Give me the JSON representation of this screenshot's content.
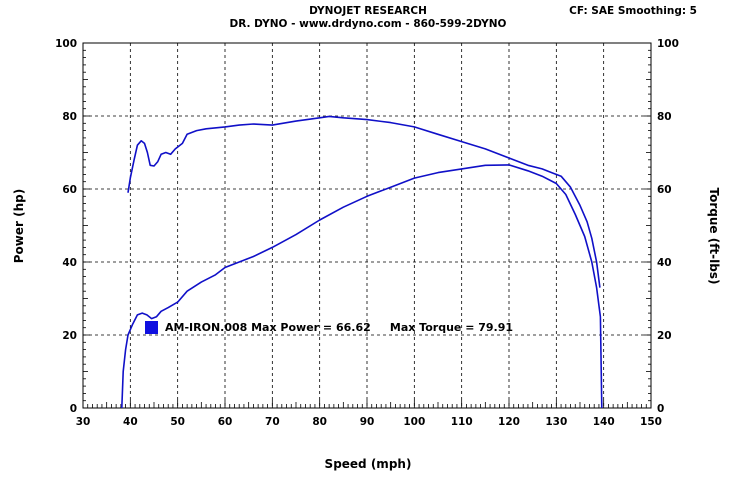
{
  "header": {
    "title": "DYNOJET RESEARCH",
    "subtitle": "DR. DYNO - www.drdyno.com - 860-599-2DYNO",
    "corrections": "CF: SAE  Smoothing: 5"
  },
  "chart_data": {
    "type": "line",
    "xlabel": "Speed (mph)",
    "ylabel_left": "Power (hp)",
    "ylabel_right": "Torque (ft-lbs)",
    "xlim": [
      30,
      150
    ],
    "ylim_left": [
      0,
      100
    ],
    "ylim_right": [
      0,
      100
    ],
    "x_ticks": [
      30,
      40,
      50,
      60,
      70,
      80,
      90,
      100,
      110,
      120,
      130,
      140,
      150
    ],
    "y_ticks": [
      0,
      20,
      40,
      60,
      80,
      100
    ],
    "grid": true,
    "legend_text": "AM-IRON.008 Max Power = 66.62     Max Torque = 79.91",
    "legend_color": "#1010e0",
    "series_color": "#1010c8",
    "series": [
      {
        "axis": "left",
        "points": [
          [
            38.2,
            0
          ],
          [
            38.5,
            10
          ],
          [
            39,
            16
          ],
          [
            39.5,
            20
          ],
          [
            40.5,
            23
          ],
          [
            41.5,
            25.5
          ],
          [
            42.5,
            26
          ],
          [
            43.5,
            25.5
          ],
          [
            44.5,
            24.5
          ],
          [
            45.5,
            25
          ],
          [
            46.5,
            26.5
          ],
          [
            48,
            27.5
          ],
          [
            50,
            29
          ],
          [
            52,
            32
          ],
          [
            55,
            34.5
          ],
          [
            58,
            36.5
          ],
          [
            60,
            38.5
          ],
          [
            63,
            40
          ],
          [
            66,
            41.5
          ],
          [
            70,
            44
          ],
          [
            75,
            47.5
          ],
          [
            80,
            51.5
          ],
          [
            85,
            55
          ],
          [
            90,
            58
          ],
          [
            95,
            60.5
          ],
          [
            100,
            63
          ],
          [
            105,
            64.5
          ],
          [
            110,
            65.5
          ],
          [
            115,
            66.5
          ],
          [
            120,
            66.6
          ],
          [
            124,
            65
          ],
          [
            127,
            63.5
          ],
          [
            130,
            61.5
          ],
          [
            132,
            58.5
          ],
          [
            134,
            53
          ],
          [
            136,
            47
          ],
          [
            137.5,
            40
          ],
          [
            138.5,
            33
          ],
          [
            139.3,
            25
          ],
          [
            139.6,
            0
          ]
        ]
      },
      {
        "axis": "right",
        "points": [
          [
            39.5,
            59
          ],
          [
            40,
            63
          ],
          [
            40.8,
            68
          ],
          [
            41.5,
            72
          ],
          [
            42.3,
            73.2
          ],
          [
            43,
            72.5
          ],
          [
            43.6,
            70
          ],
          [
            44.2,
            66.5
          ],
          [
            45,
            66.3
          ],
          [
            45.8,
            67.5
          ],
          [
            46.5,
            69.5
          ],
          [
            47.5,
            70
          ],
          [
            48.5,
            69.5
          ],
          [
            49.5,
            71
          ],
          [
            51,
            72.5
          ],
          [
            52,
            75
          ],
          [
            54,
            76
          ],
          [
            56,
            76.5
          ],
          [
            60,
            77
          ],
          [
            63,
            77.5
          ],
          [
            66,
            77.8
          ],
          [
            70,
            77.5
          ],
          [
            75,
            78.6
          ],
          [
            80,
            79.5
          ],
          [
            82,
            79.9
          ],
          [
            85,
            79.5
          ],
          [
            90,
            79
          ],
          [
            95,
            78.2
          ],
          [
            100,
            77
          ],
          [
            105,
            75
          ],
          [
            110,
            73
          ],
          [
            115,
            71
          ],
          [
            120,
            68.5
          ],
          [
            124,
            66.5
          ],
          [
            127,
            65.5
          ],
          [
            129,
            64.5
          ],
          [
            131,
            63.5
          ],
          [
            133,
            60.5
          ],
          [
            135,
            55.5
          ],
          [
            136.5,
            51
          ],
          [
            137.5,
            46.5
          ],
          [
            138.5,
            40
          ],
          [
            139.2,
            33
          ]
        ]
      }
    ]
  }
}
